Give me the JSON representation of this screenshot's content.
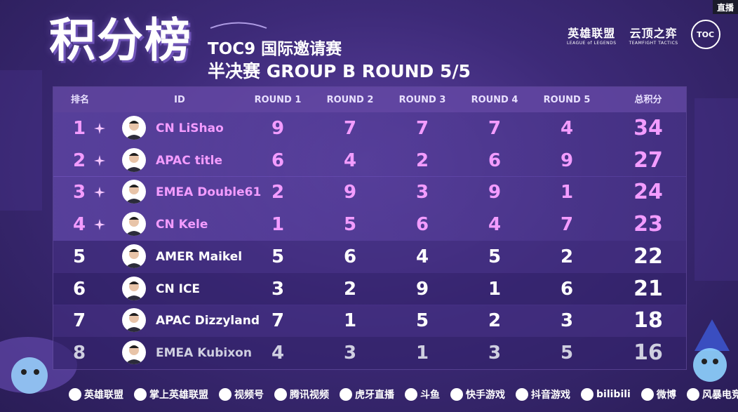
{
  "live_badge": "直播",
  "header": {
    "title": "积分榜",
    "event": "TOC9 国际邀请赛",
    "stage": "半决赛 GROUP B ROUND 5/5"
  },
  "logos": {
    "lol_cn": "英雄联盟",
    "lol_en": "LEAGUE of LEGENDS",
    "tft_cn": "云顶之弈",
    "tft_en": "TEAMFIGHT TACTICS",
    "toc": "TOC"
  },
  "table": {
    "headers": {
      "rank": "排名",
      "id": "ID",
      "r1": "ROUND 1",
      "r2": "ROUND 2",
      "r3": "ROUND 3",
      "r4": "ROUND 4",
      "r5": "ROUND 5",
      "total": "总积分"
    },
    "rows": [
      {
        "rank": "1",
        "name": "CN LiShao",
        "r1": "9",
        "r2": "7",
        "r3": "7",
        "r4": "7",
        "r5": "4",
        "total": "34",
        "qualified": true
      },
      {
        "rank": "2",
        "name": "APAC title",
        "r1": "6",
        "r2": "4",
        "r3": "2",
        "r4": "6",
        "r5": "9",
        "total": "27",
        "qualified": true
      },
      {
        "rank": "3",
        "name": "EMEA Double61",
        "r1": "2",
        "r2": "9",
        "r3": "3",
        "r4": "9",
        "r5": "1",
        "total": "24",
        "qualified": true
      },
      {
        "rank": "4",
        "name": "CN Kele",
        "r1": "1",
        "r2": "5",
        "r3": "6",
        "r4": "4",
        "r5": "7",
        "total": "23",
        "qualified": true
      },
      {
        "rank": "5",
        "name": "AMER Maikel",
        "r1": "5",
        "r2": "6",
        "r3": "4",
        "r4": "5",
        "r5": "2",
        "total": "22",
        "qualified": false
      },
      {
        "rank": "6",
        "name": "CN ICE",
        "r1": "3",
        "r2": "2",
        "r3": "9",
        "r4": "1",
        "r5": "6",
        "total": "21",
        "qualified": false
      },
      {
        "rank": "7",
        "name": "APAC Dizzyland",
        "r1": "7",
        "r2": "1",
        "r3": "5",
        "r4": "2",
        "r5": "3",
        "total": "18",
        "qualified": false
      },
      {
        "rank": "8",
        "name": "EMEA Kubixon",
        "r1": "4",
        "r2": "3",
        "r3": "1",
        "r4": "3",
        "r5": "5",
        "total": "16",
        "qualified": false
      }
    ]
  },
  "footer": {
    "sponsors": [
      "英雄联盟",
      "掌上英雄联盟",
      "视频号",
      "腾讯视频",
      "虎牙直播",
      "斗鱼",
      "快手游戏",
      "抖音游戏",
      "bilibili",
      "微博",
      "风暴电竞"
    ]
  },
  "colors": {
    "accent_pink": "#f39cff",
    "header_purple": "#825fc8",
    "bg_purple": "#3d2a78"
  }
}
